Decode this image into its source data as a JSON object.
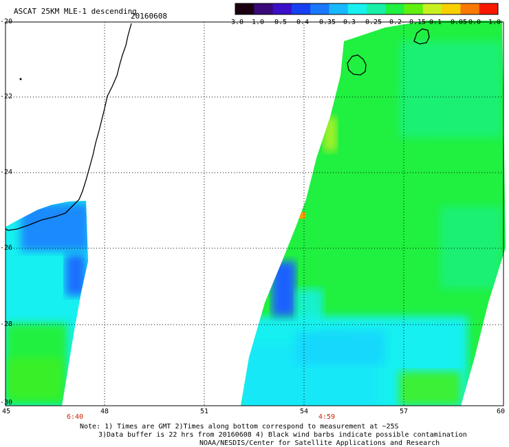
{
  "header": {
    "title": "ASCAT 25KM MLE-1 descending",
    "date": "20160608"
  },
  "colorbar": {
    "ticks": [
      "-3.0",
      "-1.0",
      "-0.5",
      "-0.4",
      "-0.35",
      "-0.3",
      "-0.25",
      "-0.2",
      "-0.15",
      "-0.1",
      "-0.05",
      "0.0",
      "1.0"
    ],
    "colors": [
      "#1a0010",
      "#3a0a78",
      "#3a10c8",
      "#1840f0",
      "#1a78ff",
      "#18b8ff",
      "#18f0f0",
      "#18f0a8",
      "#20f040",
      "#60f010",
      "#c8f020",
      "#f8d000",
      "#f87800",
      "#f81800"
    ]
  },
  "axes": {
    "lat_ticks": [
      "-20",
      "-22",
      "-24",
      "-26",
      "-28",
      "-30"
    ],
    "lon_ticks": [
      "45",
      "48",
      "51",
      "54",
      "57",
      "60"
    ]
  },
  "passes": {
    "west_time": "6:40",
    "east_time": "4:59"
  },
  "notes": {
    "line1": "Note: 1) Times are GMT 2)Times along bottom correspond to measurement at ~25S",
    "line2": "3)Data buffer is 22 hrs from 20160608 4) Black wind barbs indicate possible contamination",
    "line3": "NOAA/NESDIS/Center for Satellite Applications and Research"
  }
}
